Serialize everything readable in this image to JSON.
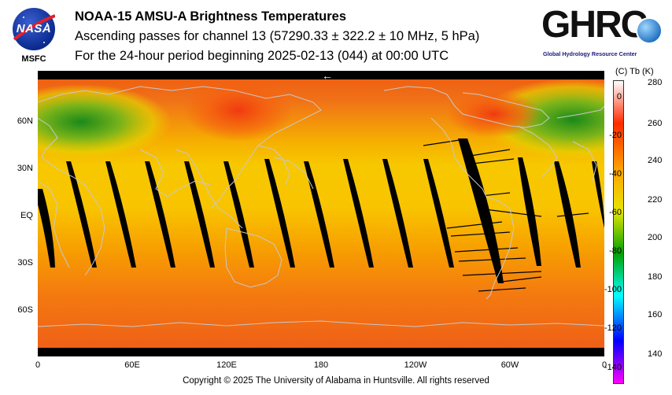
{
  "logos": {
    "nasa_text": "NASA",
    "msfc_text": "MSFC",
    "ghrc_text": "GHRC",
    "ghrc_caption": "Global Hydrology Resource Center"
  },
  "header": {
    "title": "NOAA-15 AMSU-A Brightness Temperatures",
    "line2": "Ascending passes for channel 13 (57290.33 ± 322.2 ± 10 MHz, 5 hPa)",
    "line3": "For the 24-hour period beginning 2025-02-13 (044) at 00:00 UTC"
  },
  "map": {
    "lat_labels": [
      "60N",
      "30N",
      "EQ",
      "30S",
      "60S"
    ],
    "lon_labels": [
      "0",
      "60E",
      "120E",
      "180",
      "120W",
      "60W",
      "0"
    ],
    "arrow_glyph": "←",
    "colors": {
      "coast": "#c8c8c8",
      "gap": "#000000",
      "cold": "#1c8a1c",
      "mid": "#f0d400",
      "warm": "#ff7a00",
      "hot": "#f04a00"
    }
  },
  "colorbar": {
    "header": "(C)  Tb  (K)",
    "celsius_labels": [
      "0",
      "-20",
      "-40",
      "-60",
      "-80",
      "-100",
      "-120",
      "-140"
    ],
    "kelvin_labels": [
      "280",
      "260",
      "240",
      "220",
      "200",
      "180",
      "160",
      "140"
    ],
    "colors": [
      "#ffffff",
      "#ff2a00",
      "#ffa000",
      "#e6e600",
      "#00a000",
      "#00ffff",
      "#0000ff",
      "#ff00ff"
    ]
  },
  "footer": {
    "copyright": "Copyright © 2025 The University of Alabama in Huntsville.  All rights reserved"
  }
}
